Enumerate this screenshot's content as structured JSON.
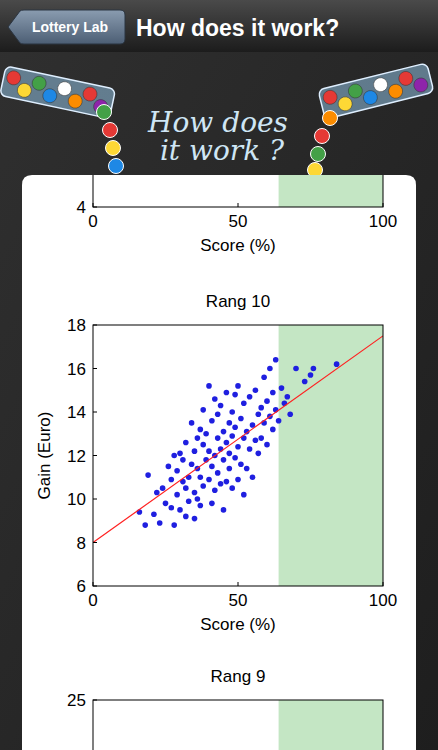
{
  "nav": {
    "back": "Lottery Lab",
    "title": "How does it work?"
  },
  "banner": [
    "How does",
    "it work ?"
  ],
  "chart_data": [
    {
      "type": "scatter",
      "xlabel": "Score (%)",
      "xlim": [
        0,
        100
      ],
      "xticks": [
        0,
        50,
        100
      ],
      "ylim": [
        4,
        12
      ],
      "yticks": [
        4
      ],
      "shaded_x": [
        64,
        100
      ]
    },
    {
      "type": "scatter",
      "title": "Rang 10",
      "xlabel": "Score (%)",
      "ylabel": "Gain (Euro)",
      "xlim": [
        0,
        100
      ],
      "xticks": [
        0,
        50,
        100
      ],
      "ylim": [
        6,
        18
      ],
      "yticks": [
        6,
        8,
        10,
        12,
        14,
        16,
        18
      ],
      "shaded_x": [
        64,
        100
      ],
      "series": [
        {
          "type": "scatter",
          "color": "#1f1fe0",
          "marker": "circle",
          "x": [
            16,
            18,
            19,
            21,
            22,
            23,
            24,
            25,
            26,
            27,
            27,
            28,
            28,
            29,
            29,
            30,
            30,
            31,
            31,
            32,
            32,
            32,
            33,
            33,
            34,
            34,
            35,
            35,
            35,
            36,
            36,
            36,
            37,
            37,
            37,
            38,
            38,
            38,
            39,
            39,
            40,
            40,
            40,
            41,
            41,
            41,
            42,
            42,
            42,
            43,
            43,
            43,
            44,
            44,
            44,
            45,
            45,
            45,
            46,
            46,
            46,
            47,
            47,
            47,
            48,
            48,
            48,
            49,
            49,
            49,
            50,
            50,
            50,
            51,
            51,
            52,
            52,
            52,
            53,
            53,
            54,
            54,
            55,
            55,
            56,
            56,
            57,
            57,
            58,
            58,
            59,
            59,
            60,
            60,
            61,
            61,
            62,
            62,
            63,
            63,
            64,
            65,
            66,
            67,
            68,
            70,
            73,
            75,
            76,
            84
          ],
          "values": [
            9.4,
            8.8,
            11.1,
            9.3,
            10.3,
            8.9,
            10.5,
            9.8,
            11.5,
            9.6,
            10.9,
            8.8,
            12.0,
            10.2,
            11.3,
            9.5,
            12.1,
            10.8,
            11.8,
            9.2,
            10.5,
            12.6,
            11.0,
            9.9,
            11.6,
            13.5,
            10.3,
            12.2,
            9.1,
            11.4,
            10.0,
            12.8,
            13.2,
            11.0,
            9.7,
            12.5,
            10.6,
            14.1,
            11.8,
            13.0,
            15.2,
            10.9,
            12.2,
            11.5,
            13.6,
            9.8,
            12.0,
            14.6,
            10.4,
            11.2,
            12.8,
            13.9,
            10.7,
            12.3,
            14.3,
            11.8,
            13.1,
            9.5,
            12.6,
            14.9,
            10.8,
            11.4,
            13.5,
            12.1,
            14.0,
            10.5,
            12.9,
            11.9,
            13.3,
            14.8,
            12.4,
            10.9,
            15.2,
            13.7,
            11.6,
            12.8,
            14.4,
            10.2,
            13.1,
            11.4,
            12.3,
            14.7,
            13.4,
            11.0,
            12.7,
            15.0,
            13.9,
            12.1,
            14.2,
            12.8,
            15.6,
            13.5,
            14.5,
            12.5,
            16.0,
            13.8,
            14.9,
            13.2,
            16.4,
            14.1,
            13.6,
            15.1,
            14.4,
            14.7,
            13.9,
            16.0,
            15.4,
            15.7,
            16.0,
            16.2
          ]
        },
        {
          "type": "line",
          "color": "#ff2020",
          "line_style": "solid",
          "x": [
            0,
            100
          ],
          "values": [
            8,
            17.5
          ]
        }
      ]
    },
    {
      "type": "scatter",
      "title": "Rang 9",
      "xlim": [
        0,
        100
      ],
      "ylim": [
        10,
        25
      ],
      "yticks": [
        25
      ],
      "shaded_x": [
        64,
        100
      ]
    }
  ]
}
